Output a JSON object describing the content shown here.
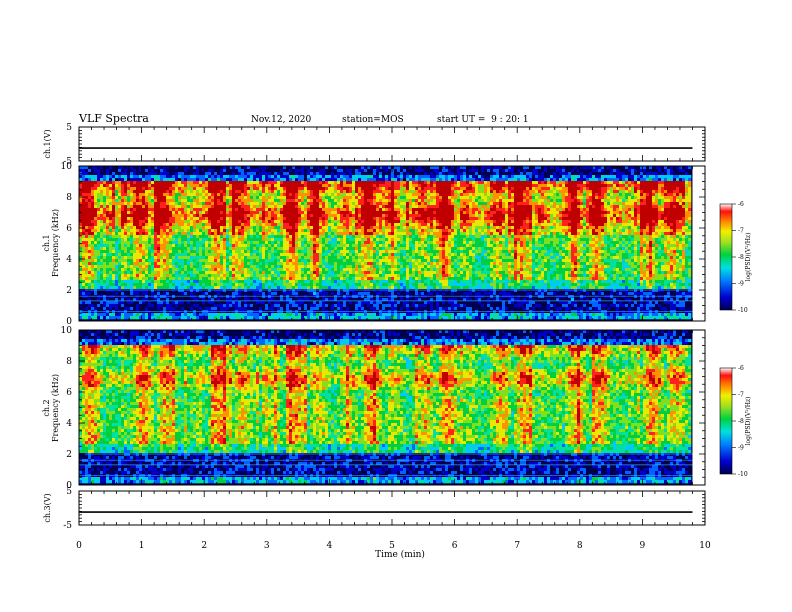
{
  "header": {
    "title": "VLF Spectra",
    "date": "Nov.12, 2020",
    "station": "station=MOS",
    "start": "start UT =  9 : 20: 1"
  },
  "chart_data": [
    {
      "type": "line",
      "name": "ch1-waveform",
      "ylabel": "ch.1(V)",
      "ylim": [
        -5,
        5
      ],
      "yticks": [
        "5",
        "-5"
      ],
      "xlim": [
        0,
        10
      ],
      "x": [
        0,
        9.8
      ],
      "values": [
        -1.2,
        -1.2
      ]
    },
    {
      "type": "heatmap",
      "name": "ch1-spectrogram",
      "ylabel": "ch.1\nFrequency (kHz)",
      "ylim": [
        0,
        10
      ],
      "yticks": [
        "0",
        "2",
        "4",
        "6",
        "8",
        "10"
      ],
      "xlim": [
        0,
        9.8
      ],
      "color_scale": {
        "min": -10,
        "max": -6,
        "ticks": [
          "-6",
          "-7",
          "-8",
          "-9",
          "-10"
        ],
        "label": "log(PSD)(V²/Hz)"
      }
    },
    {
      "type": "heatmap",
      "name": "ch2-spectrogram",
      "ylabel": "ch.2\nFrequency (kHz)",
      "ylim": [
        0,
        10
      ],
      "yticks": [
        "0",
        "2",
        "4",
        "6",
        "8",
        "10"
      ],
      "xlim": [
        0,
        9.8
      ],
      "color_scale": {
        "min": -10,
        "max": -6,
        "ticks": [
          "-6",
          "-7",
          "-8",
          "-9",
          "-10"
        ],
        "label": "log(PSD)(V²/Hz)"
      }
    },
    {
      "type": "line",
      "name": "ch3-waveform",
      "ylabel": "ch.3(V)",
      "ylim": [
        -5,
        5
      ],
      "yticks": [
        "5",
        "-5"
      ],
      "xlim": [
        0,
        10
      ],
      "x": [
        0,
        9.8
      ],
      "values": [
        -1.2,
        -1.2
      ]
    }
  ],
  "xaxis": {
    "label": "Time (min)",
    "ticks": [
      "0",
      "1",
      "2",
      "3",
      "4",
      "5",
      "6",
      "7",
      "8",
      "9",
      "10"
    ],
    "range": [
      0,
      10
    ]
  },
  "colormap": [
    "#000050",
    "#0000c8",
    "#0064ff",
    "#00c8ff",
    "#00e0a0",
    "#00d040",
    "#80e020",
    "#e8e800",
    "#ff9000",
    "#ff2020",
    "#c00000"
  ]
}
